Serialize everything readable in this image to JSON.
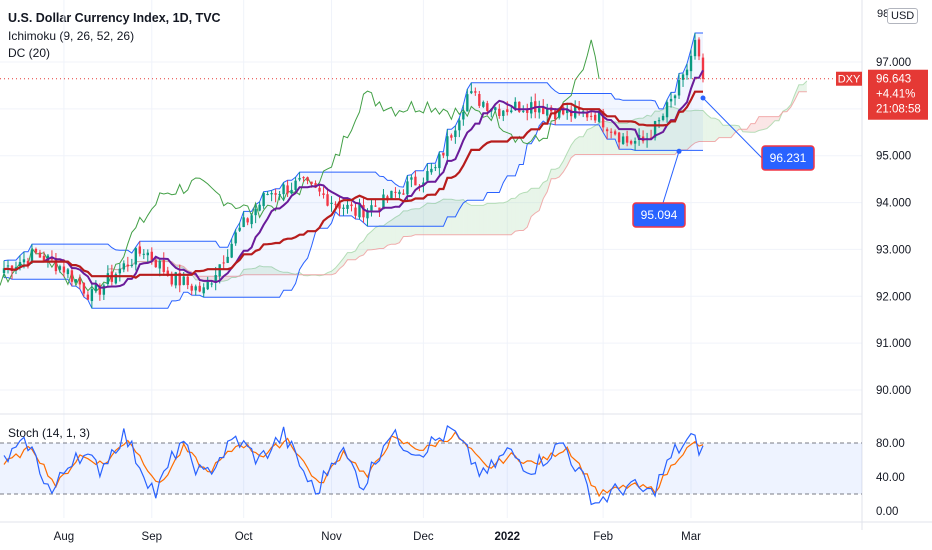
{
  "header": {
    "title": "U.S. Dollar Currency Index, 1D, TVC",
    "ichimoku": "Ichimoku (9, 26, 52, 26)",
    "dc": "DC (20)",
    "currency": "USD",
    "top_partial": "98"
  },
  "stoch_label": "Stoch (14, 1, 3)",
  "colors": {
    "price_line": "#e53935",
    "bull": "#089981",
    "bear": "#f23645",
    "tenkan": "#2962ff",
    "kijun": "#b71c1c",
    "chikou": "#43a047",
    "donchian": "#2962ff",
    "cloud_bull": "#a5d6a7",
    "cloud_bear": "#ef9a9a",
    "callout": "#2962ff",
    "stoch_k": "#2962ff",
    "stoch_d": "#ff6d00"
  },
  "chart_data": {
    "type": "candlestick",
    "symbol_badge": "DXY",
    "last_price": "96.643",
    "change": "+4.41%",
    "countdown": "21:08:58",
    "y_ticks": [
      "97.000",
      "96.000",
      "95.000",
      "94.000",
      "93.000",
      "92.000",
      "91.000",
      "90.000"
    ],
    "x_ticks": [
      "Aug",
      "Sep",
      "Oct",
      "Nov",
      "Dec",
      "2022",
      "Feb",
      "Mar"
    ],
    "ylim": [
      89.6,
      98.0
    ],
    "callouts": [
      {
        "label": "96.231",
        "value": 96.231
      },
      {
        "label": "95.094",
        "value": 95.094
      }
    ],
    "price_anchors": [
      [
        0,
        92.6
      ],
      [
        8,
        92.9
      ],
      [
        15,
        92.6
      ],
      [
        22,
        92.0
      ],
      [
        28,
        92.5
      ],
      [
        35,
        93.0
      ],
      [
        42,
        92.4
      ],
      [
        50,
        92.1
      ],
      [
        58,
        93.3
      ],
      [
        66,
        94.2
      ],
      [
        74,
        94.4
      ],
      [
        81,
        94.1
      ],
      [
        88,
        93.8
      ],
      [
        95,
        94.0
      ],
      [
        100,
        94.3
      ],
      [
        108,
        94.7
      ],
      [
        116,
        96.3
      ],
      [
        124,
        96.0
      ],
      [
        132,
        96.1
      ],
      [
        140,
        95.9
      ],
      [
        148,
        95.9
      ],
      [
        152,
        95.6
      ],
      [
        156,
        95.3
      ],
      [
        160,
        95.3
      ],
      [
        164,
        95.7
      ],
      [
        170,
        96.6
      ],
      [
        173,
        97.4
      ],
      [
        175,
        96.64
      ]
    ],
    "stochastic": {
      "levels": [
        80,
        20
      ],
      "ticks": [
        "80.00",
        "40.00",
        "0.00"
      ],
      "k_anchors": [
        [
          0,
          60
        ],
        [
          6,
          80
        ],
        [
          12,
          20
        ],
        [
          18,
          70
        ],
        [
          24,
          50
        ],
        [
          30,
          90
        ],
        [
          38,
          20
        ],
        [
          44,
          80
        ],
        [
          50,
          40
        ],
        [
          58,
          85
        ],
        [
          64,
          60
        ],
        [
          70,
          90
        ],
        [
          78,
          20
        ],
        [
          84,
          75
        ],
        [
          90,
          30
        ],
        [
          96,
          90
        ],
        [
          104,
          70
        ],
        [
          112,
          95
        ],
        [
          120,
          40
        ],
        [
          126,
          70
        ],
        [
          132,
          50
        ],
        [
          140,
          80
        ],
        [
          148,
          10
        ],
        [
          156,
          30
        ],
        [
          162,
          20
        ],
        [
          168,
          70
        ],
        [
          172,
          85
        ],
        [
          175,
          70
        ]
      ],
      "d_anchors": [
        [
          0,
          55
        ],
        [
          7,
          75
        ],
        [
          13,
          30
        ],
        [
          19,
          65
        ],
        [
          25,
          55
        ],
        [
          31,
          85
        ],
        [
          39,
          30
        ],
        [
          45,
          75
        ],
        [
          51,
          45
        ],
        [
          59,
          80
        ],
        [
          65,
          65
        ],
        [
          71,
          85
        ],
        [
          79,
          30
        ],
        [
          85,
          70
        ],
        [
          91,
          40
        ],
        [
          97,
          85
        ],
        [
          105,
          72
        ],
        [
          113,
          90
        ],
        [
          121,
          50
        ],
        [
          127,
          65
        ],
        [
          133,
          55
        ],
        [
          141,
          75
        ],
        [
          149,
          20
        ],
        [
          157,
          30
        ],
        [
          163,
          25
        ],
        [
          169,
          65
        ],
        [
          173,
          80
        ],
        [
          175,
          75
        ]
      ]
    }
  }
}
